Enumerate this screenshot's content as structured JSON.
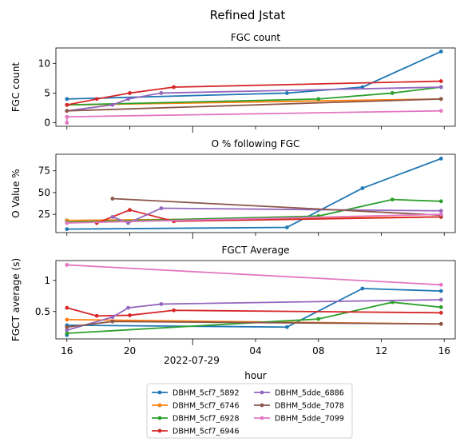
{
  "figure": {
    "suptitle": "Refined Jstat",
    "xlabel": "hour",
    "date_label": "2022-07-29",
    "x_ticks": [
      "16",
      "20",
      "04",
      "08",
      "12",
      "16"
    ],
    "x_tick_hours": [
      16,
      20,
      28,
      32,
      36,
      40
    ],
    "x_range_hours": [
      15.3,
      40.7
    ]
  },
  "legend": {
    "placement": "bottom-center",
    "columns": 2,
    "entries": [
      {
        "name": "DBHM_5cf7_5892",
        "color": "#1f77b4"
      },
      {
        "name": "DBHM_5cf7_6746",
        "color": "#ff7f0e"
      },
      {
        "name": "DBHM_5cf7_6928",
        "color": "#2ca02c"
      },
      {
        "name": "DBHM_5cf7_6946",
        "color": "#d62728"
      },
      {
        "name": "DBHM_5dde_6886",
        "color": "#9467bd"
      },
      {
        "name": "DBHM_5dde_7078",
        "color": "#8c564b"
      },
      {
        "name": "DBHM_5dde_7099",
        "color": "#e377c2"
      }
    ]
  },
  "chart_data": [
    {
      "type": "line",
      "title": "FGC count",
      "xlabel": "",
      "ylabel": "FGC count",
      "x_unit": "hours from 2022-07-28 00:00",
      "ylim": [
        -0.6,
        12.6
      ],
      "yticks": [
        0,
        5,
        10
      ],
      "grid": false,
      "series": [
        {
          "name": "DBHM_5cf7_5892",
          "points": [
            [
              16,
              4
            ],
            [
              30,
              5
            ],
            [
              34.8,
              6
            ],
            [
              39.8,
              12
            ]
          ]
        },
        {
          "name": "DBHM_5cf7_6746",
          "points": [
            [
              16,
              3
            ],
            [
              39.8,
              4
            ]
          ]
        },
        {
          "name": "DBHM_5cf7_6928",
          "points": [
            [
              16,
              3
            ],
            [
              32,
              4
            ],
            [
              36.7,
              5
            ],
            [
              39.8,
              6
            ]
          ]
        },
        {
          "name": "DBHM_5cf7_6946",
          "points": [
            [
              16,
              3
            ],
            [
              17.9,
              4
            ],
            [
              20,
              5
            ],
            [
              22.8,
              6
            ],
            [
              39.8,
              7
            ]
          ]
        },
        {
          "name": "DBHM_5dde_6886",
          "points": [
            [
              16,
              2
            ],
            [
              18.9,
              3
            ],
            [
              19.9,
              4
            ],
            [
              22,
              5
            ],
            [
              39.8,
              6
            ]
          ]
        },
        {
          "name": "DBHM_5dde_7078",
          "points": [
            [
              16,
              2
            ],
            [
              39.8,
              4
            ]
          ]
        },
        {
          "name": "DBHM_5dde_7099",
          "points": [
            [
              16,
              0
            ],
            [
              16,
              1
            ],
            [
              39.8,
              2
            ]
          ]
        }
      ]
    },
    {
      "type": "line",
      "title": "O % following FGC",
      "xlabel": "",
      "ylabel": "O Value %",
      "x_unit": "hours from 2022-07-28 00:00",
      "ylim": [
        4,
        94
      ],
      "yticks": [
        25,
        50,
        75
      ],
      "grid": false,
      "series": [
        {
          "name": "DBHM_5cf7_5892",
          "points": [
            [
              16,
              8
            ],
            [
              30,
              10
            ],
            [
              34.8,
              55
            ],
            [
              39.8,
              89
            ]
          ]
        },
        {
          "name": "DBHM_5cf7_6746",
          "points": [
            [
              16,
              18
            ],
            [
              39.8,
              22
            ]
          ]
        },
        {
          "name": "DBHM_5cf7_6928",
          "points": [
            [
              16,
              16
            ],
            [
              32,
              23
            ],
            [
              36.7,
              42
            ],
            [
              39.8,
              40
            ]
          ]
        },
        {
          "name": "DBHM_5cf7_6946",
          "points": [
            [
              17.9,
              15
            ],
            [
              20,
              30
            ],
            [
              22.8,
              17
            ],
            [
              39.8,
              22
            ]
          ]
        },
        {
          "name": "DBHM_5dde_6886",
          "points": [
            [
              18.9,
              22
            ],
            [
              19.9,
              15
            ],
            [
              22,
              32
            ],
            [
              39.8,
              29
            ]
          ]
        },
        {
          "name": "DBHM_5dde_7078",
          "points": [
            [
              18.9,
              43
            ],
            [
              39.8,
              24
            ]
          ]
        },
        {
          "name": "DBHM_5dde_7099",
          "points": [
            [
              16,
              15
            ],
            [
              39.8,
              25
            ]
          ]
        }
      ]
    },
    {
      "type": "line",
      "title": "FGCT Average",
      "xlabel": "hour",
      "ylabel": "FGCT average (s)",
      "x_unit": "hours from 2022-07-28 00:00",
      "ylim": [
        0.06,
        1.32
      ],
      "yticks": [
        0.5,
        1.0
      ],
      "grid": false,
      "series": [
        {
          "name": "DBHM_5cf7_5892",
          "points": [
            [
              16,
              0.12
            ],
            [
              16,
              0.28
            ],
            [
              30,
              0.25
            ],
            [
              34.8,
              0.87
            ],
            [
              39.8,
              0.83
            ]
          ]
        },
        {
          "name": "DBHM_5cf7_6746",
          "points": [
            [
              16,
              0.37
            ],
            [
              39.8,
              0.3
            ]
          ]
        },
        {
          "name": "DBHM_5cf7_6928",
          "points": [
            [
              16,
              0.15
            ],
            [
              32,
              0.38
            ],
            [
              36.7,
              0.65
            ],
            [
              39.8,
              0.57
            ]
          ]
        },
        {
          "name": "DBHM_5cf7_6946",
          "points": [
            [
              16,
              0.56
            ],
            [
              17.9,
              0.43
            ],
            [
              20,
              0.44
            ],
            [
              22.8,
              0.52
            ],
            [
              39.8,
              0.48
            ]
          ]
        },
        {
          "name": "DBHM_5dde_6886",
          "points": [
            [
              16,
              0.2
            ],
            [
              18.9,
              0.41
            ],
            [
              19.9,
              0.56
            ],
            [
              22,
              0.62
            ],
            [
              39.8,
              0.69
            ]
          ]
        },
        {
          "name": "DBHM_5dde_7078",
          "points": [
            [
              16,
              0.25
            ],
            [
              18.9,
              0.34
            ],
            [
              39.8,
              0.3
            ]
          ]
        },
        {
          "name": "DBHM_5dde_7099",
          "points": [
            [
              16,
              1.25
            ],
            [
              39.8,
              0.93
            ]
          ]
        }
      ]
    }
  ]
}
